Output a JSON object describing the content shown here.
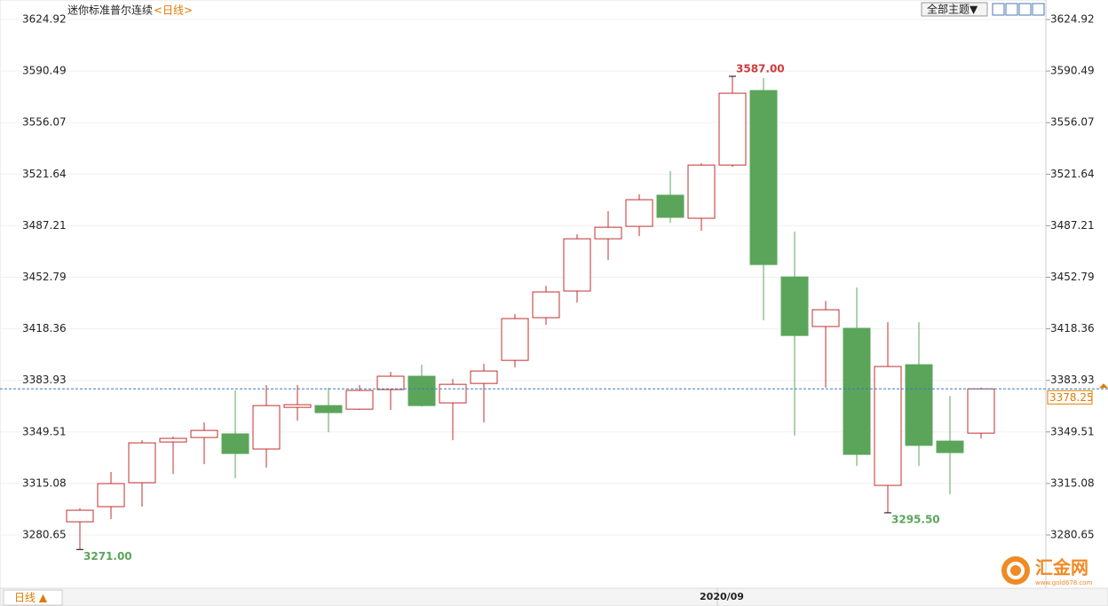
{
  "chart_data": {
    "type": "candlestick",
    "title": "迷你标准普尔连续",
    "subtitle": "<日线>",
    "theme_button": "全部主题▼",
    "period_button": "日线 ▲",
    "logo": "汇金网",
    "logo_url": "www.gold678.com",
    "categories": [
      null,
      null,
      null,
      null,
      null,
      null,
      null,
      null,
      null,
      null,
      null,
      null,
      null,
      null,
      null,
      null,
      null,
      null,
      null,
      null,
      null,
      "2020/09",
      null,
      null,
      null,
      null,
      null,
      null,
      null,
      null
    ],
    "open": [
      3289.5,
      3299.6,
      3315.6,
      3342.8,
      3345.8,
      3348.2,
      3338.1,
      3365.9,
      3367.1,
      3364.7,
      3377.8,
      3386.7,
      3368.9,
      3381.9,
      3397.3,
      3425.8,
      3443.6,
      3478.5,
      3486.8,
      3507.6,
      3492.2,
      3527.7,
      3577.5,
      3453.0,
      3419.9,
      3418.7,
      3313.8,
      3394.4,
      3343.4,
      3348.7
    ],
    "high": [
      3298.4,
      3322.7,
      3344.0,
      3346.4,
      3355.9,
      3377.2,
      3380.8,
      3380.8,
      3379.0,
      3380.8,
      3389.6,
      3394.4,
      3384.9,
      3395.0,
      3428.2,
      3447.1,
      3481.5,
      3496.9,
      3508.2,
      3523.6,
      3528.9,
      3587.0,
      3585.8,
      3483.3,
      3437.0,
      3445.9,
      3422.8,
      3422.8,
      3373.6,
      3379.0
    ],
    "low": [
      3271.0,
      3291.3,
      3299.6,
      3321.5,
      3328.0,
      3318.5,
      3325.6,
      3357.0,
      3349.3,
      3364.2,
      3364.2,
      3366.5,
      3344.0,
      3355.9,
      3392.6,
      3421.0,
      3435.9,
      3464.3,
      3480.3,
      3489.2,
      3483.9,
      3526.5,
      3424.0,
      3347.0,
      3379.0,
      3326.8,
      3295.5,
      3326.8,
      3307.9,
      3345.2
    ],
    "close": [
      3297.2,
      3315.0,
      3342.2,
      3345.2,
      3350.5,
      3335.1,
      3367.1,
      3367.7,
      3362.4,
      3377.2,
      3386.7,
      3367.1,
      3381.3,
      3390.2,
      3425.2,
      3443.0,
      3478.5,
      3486.2,
      3504.6,
      3492.8,
      3527.7,
      3575.7,
      3461.3,
      3413.9,
      3431.1,
      3334.5,
      3393.2,
      3340.5,
      3335.7,
      3378.25
    ],
    "up_color": "#c0302f",
    "down_color": "#5ba55b",
    "annotations": [
      {
        "value": 3587,
        "label": "3587.00",
        "color": "#d03a3a"
      },
      {
        "value": 3271,
        "label": "3271.00",
        "color": "#5ba55b"
      },
      {
        "value": 3295.5,
        "label": "3295.50",
        "color": "#5ba55b"
      }
    ],
    "last": {
      "value": 3378.25,
      "label": "3378.25"
    },
    "ylim": [
      3245.1,
      3637.96
    ],
    "yticks": [
      3624.92,
      3590.49,
      3556.07,
      3521.64,
      3487.21,
      3452.79,
      3418.36,
      3383.93,
      3349.51,
      3315.08,
      3280.65
    ]
  }
}
